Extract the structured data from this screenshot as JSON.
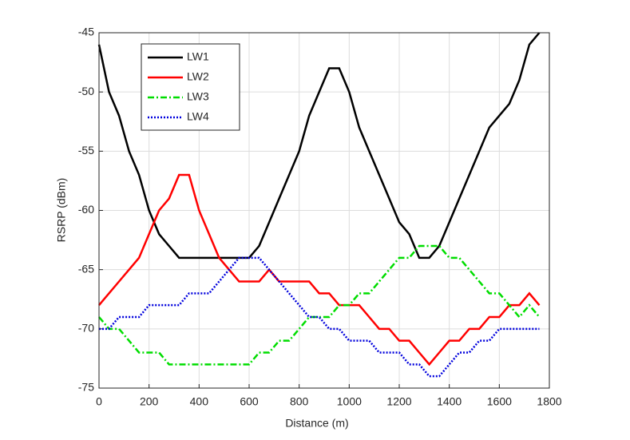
{
  "chart_data": {
    "type": "line",
    "xlabel": "Distance (m)",
    "ylabel": "RSRP (dBm)",
    "x": [
      0,
      40,
      80,
      120,
      160,
      200,
      240,
      280,
      320,
      360,
      400,
      440,
      480,
      520,
      560,
      600,
      640,
      680,
      720,
      760,
      800,
      840,
      880,
      920,
      960,
      1000,
      1040,
      1080,
      1120,
      1160,
      1200,
      1240,
      1280,
      1320,
      1360,
      1400,
      1440,
      1480,
      1520,
      1560,
      1600,
      1640,
      1680,
      1720,
      1760
    ],
    "series": [
      {
        "name": "LW1",
        "color": "#000000",
        "dash": "solid",
        "values": [
          -46,
          -50,
          -52,
          -55,
          -57,
          -60,
          -62,
          -63,
          -64,
          -64,
          -64,
          -64,
          -64,
          -64,
          -64,
          -64,
          -63,
          -61,
          -59,
          -57,
          -55,
          -52,
          -50,
          -48,
          -48,
          -50,
          -53,
          -55,
          -57,
          -59,
          -61,
          -62,
          -64,
          -64,
          -63,
          -61,
          -59,
          -57,
          -55,
          -53,
          -52,
          -51,
          -49,
          -46,
          -45
        ]
      },
      {
        "name": "LW2",
        "color": "#ff0000",
        "dash": "solid",
        "values": [
          -68,
          -67,
          -66,
          -65,
          -64,
          -62,
          -60,
          -59,
          -57,
          -57,
          -60,
          -62,
          -64,
          -65,
          -66,
          -66,
          -66,
          -65,
          -66,
          -66,
          -66,
          -66,
          -67,
          -67,
          -68,
          -68,
          -68,
          -69,
          -70,
          -70,
          -71,
          -71,
          -72,
          -73,
          -72,
          -71,
          -71,
          -70,
          -70,
          -69,
          -69,
          -68,
          -68,
          -67,
          -68
        ]
      },
      {
        "name": "LW3",
        "color": "#00dd00",
        "dash": "dashdot",
        "values": [
          -69,
          -70,
          -70,
          -71,
          -72,
          -72,
          -72,
          -73,
          -73,
          -73,
          -73,
          -73,
          -73,
          -73,
          -73,
          -73,
          -72,
          -72,
          -71,
          -71,
          -70,
          -69,
          -69,
          -69,
          -68,
          -68,
          -67,
          -67,
          -66,
          -65,
          -64,
          -64,
          -63,
          -63,
          -63,
          -64,
          -64,
          -65,
          -66,
          -67,
          -67,
          -68,
          -69,
          -68,
          -69
        ]
      },
      {
        "name": "LW4",
        "color": "#0000dd",
        "dash": "dotted",
        "values": [
          -70,
          -70,
          -69,
          -69,
          -69,
          -68,
          -68,
          -68,
          -68,
          -67,
          -67,
          -67,
          -66,
          -65,
          -64,
          -64,
          -64,
          -65,
          -66,
          -67,
          -68,
          -69,
          -69,
          -70,
          -70,
          -71,
          -71,
          -71,
          -72,
          -72,
          -72,
          -73,
          -73,
          -74,
          -74,
          -73,
          -72,
          -72,
          -71,
          -71,
          -70,
          -70,
          -70,
          -70,
          -70
        ]
      }
    ],
    "xlim": [
      0,
      1800
    ],
    "xticks": [
      0,
      200,
      400,
      600,
      800,
      1000,
      1200,
      1400,
      1600,
      1800
    ],
    "ylim": [
      -75,
      -45
    ],
    "yticks": [
      -75,
      -70,
      -65,
      -60,
      -55,
      -50,
      -45
    ],
    "grid": true,
    "legend": "upper left"
  }
}
